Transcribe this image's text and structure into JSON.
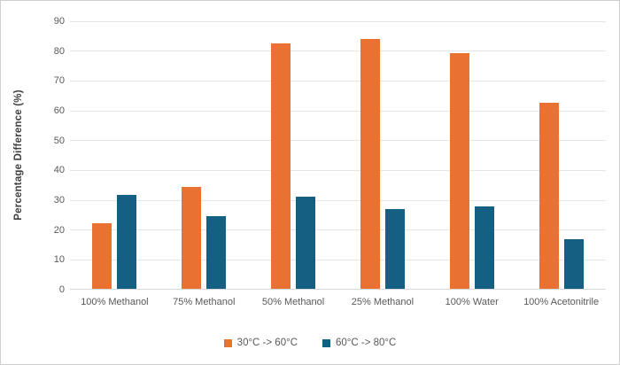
{
  "chart_data": {
    "type": "bar",
    "title": "",
    "ylabel": "Percentage Difference (%)",
    "xlabel": "",
    "ylim": [
      0,
      90
    ],
    "ytick_step": 10,
    "grid": true,
    "legend_position": "bottom",
    "categories": [
      "100% Methanol",
      "75% Methanol",
      "50% Methanol",
      "25% Methanol",
      "100% Water",
      "100% Acetonitrile"
    ],
    "series": [
      {
        "name": "30°C -> 60°C",
        "color": "#E97132",
        "values": [
          22.2,
          34.6,
          82.6,
          84.1,
          79.3,
          62.8
        ]
      },
      {
        "name": "60°C -> 80°C",
        "color": "#156082",
        "values": [
          31.7,
          24.8,
          31.2,
          26.9,
          27.8,
          17.0
        ]
      }
    ]
  },
  "colors": {
    "series_orange": "#E97132",
    "series_teal": "#156082",
    "gridline": "#E6E6E6",
    "axis_line": "#D9D9D9",
    "tick_text": "#595959",
    "axis_title_text": "#404040",
    "chart_border": "#CFCFCF",
    "background": "#FFFFFF"
  }
}
